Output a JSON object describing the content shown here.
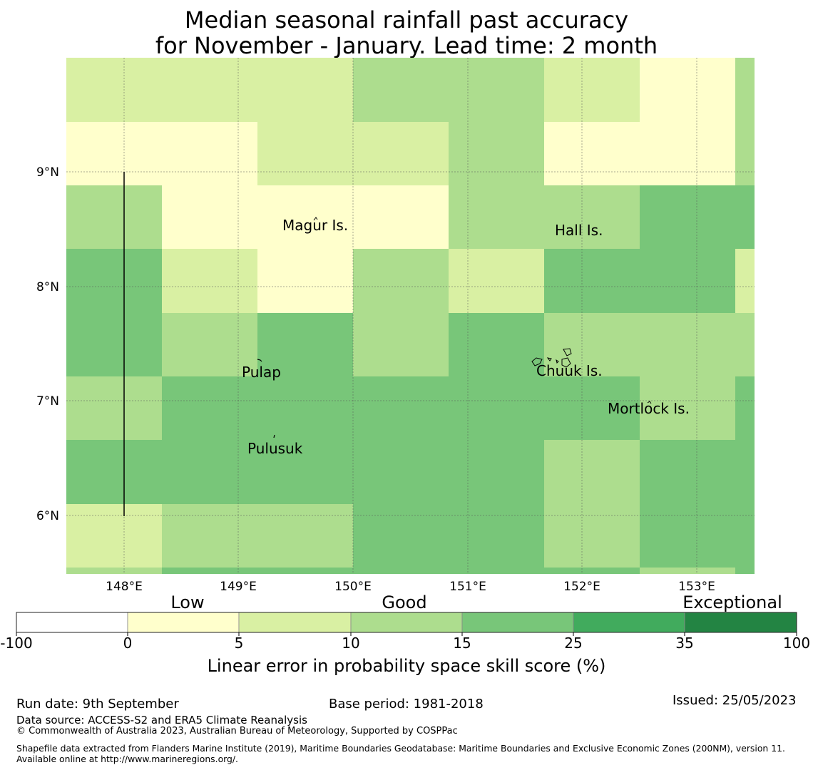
{
  "title": {
    "line1": "Median seasonal rainfall past accuracy",
    "line2": "for November - January. Lead time: 2 month"
  },
  "map": {
    "x_ticks": [
      "148°E",
      "149°E",
      "150°E",
      "151°E",
      "152°E",
      "153°E"
    ],
    "y_ticks": [
      "9°N",
      "8°N",
      "7°N",
      "6°N"
    ],
    "places": [
      {
        "name": "Magur Is."
      },
      {
        "name": "Hall Is."
      },
      {
        "name": "Pulap"
      },
      {
        "name": "Chuuk Is."
      },
      {
        "name": "Mortlock Is."
      },
      {
        "name": "Pulusuk"
      }
    ],
    "grid_rows": [
      [
        2,
        2,
        2,
        3,
        3,
        2,
        1,
        3
      ],
      [
        1,
        1,
        2,
        2,
        3,
        1,
        1,
        3
      ],
      [
        3,
        1,
        1,
        1,
        3,
        3,
        4,
        4
      ],
      [
        4,
        2,
        1,
        3,
        2,
        4,
        4,
        2
      ],
      [
        4,
        3,
        4,
        3,
        4,
        3,
        3,
        3
      ],
      [
        3,
        4,
        4,
        4,
        4,
        4,
        3,
        4
      ],
      [
        4,
        4,
        4,
        4,
        4,
        3,
        4,
        4
      ],
      [
        2,
        3,
        3,
        4,
        4,
        3,
        4,
        4
      ]
    ]
  },
  "colorbar": {
    "category_labels": [
      "Low",
      "Good",
      "Exceptional"
    ],
    "tick_labels": [
      "-100",
      "0",
      "5",
      "10",
      "15",
      "25",
      "35",
      "100"
    ],
    "colors": [
      "#ffffff",
      "#ffffcc",
      "#d9f0a3",
      "#addd8e",
      "#78c679",
      "#41ab5d",
      "#238443"
    ],
    "label": "Linear error in probability space skill score (%)"
  },
  "footer": {
    "run_date": "Run date: 9th September",
    "base_period": "Base period: 1981-2018",
    "issued": "Issued: 25/05/2023",
    "data_source": "Data source: ACCESS-S2 and ERA5 Climate Reanalysis",
    "copyright": "© Commonwealth of Australia 2023, Australian Bureau of Meteorology, Supported by COSPPac",
    "shapefile": "Shapefile data extracted from Flanders Marine Institute (2019), Maritime Boundaries Geodatabase: Maritime Boundaries and Exclusive Economic Zones (200NM), version 11. Available online at http://www.marineregions.org/."
  }
}
